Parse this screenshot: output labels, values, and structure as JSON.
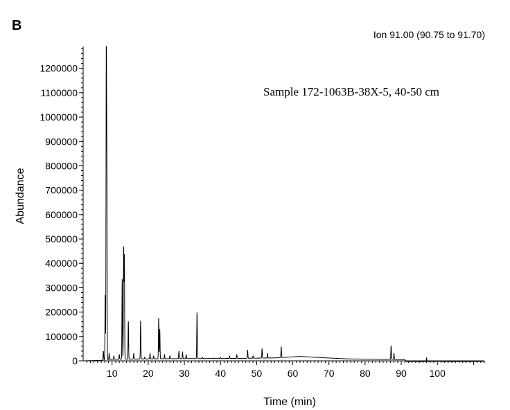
{
  "panel_label": "B",
  "ion_label": "Ion 91.00 (90.75  to 91.70)",
  "chart_data": {
    "type": "line",
    "title": "",
    "annotation": "Sample 172-1063B-38X-5, 40-50 cm",
    "xlabel": "Time (min)",
    "ylabel": "Abundance",
    "xlim": [
      2,
      113
    ],
    "ylim": [
      0,
      1290000
    ],
    "x_ticks": [
      10,
      20,
      30,
      40,
      50,
      60,
      70,
      80,
      90,
      100
    ],
    "y_ticks": [
      0,
      100000,
      200000,
      300000,
      400000,
      500000,
      600000,
      700000,
      800000,
      900000,
      1000000,
      1100000,
      1200000
    ],
    "grid": false,
    "series": [
      {
        "color": "#000000",
        "peaks": [
          {
            "x": 7.6,
            "y": 40000
          },
          {
            "x": 8.1,
            "y": 270000
          },
          {
            "x": 8.4,
            "y": 1290000
          },
          {
            "x": 8.55,
            "y": 770000
          },
          {
            "x": 9.2,
            "y": 30000
          },
          {
            "x": 10.5,
            "y": 20000
          },
          {
            "x": 12.0,
            "y": 25000
          },
          {
            "x": 12.8,
            "y": 335000
          },
          {
            "x": 13.2,
            "y": 462000
          },
          {
            "x": 13.4,
            "y": 430000
          },
          {
            "x": 14.5,
            "y": 162000
          },
          {
            "x": 16.0,
            "y": 30000
          },
          {
            "x": 17.9,
            "y": 165000
          },
          {
            "x": 19.0,
            "y": 15000
          },
          {
            "x": 20.5,
            "y": 30000
          },
          {
            "x": 21.5,
            "y": 20000
          },
          {
            "x": 22.9,
            "y": 176000
          },
          {
            "x": 23.2,
            "y": 130000
          },
          {
            "x": 24.5,
            "y": 25000
          },
          {
            "x": 26.0,
            "y": 20000
          },
          {
            "x": 28.5,
            "y": 40000
          },
          {
            "x": 29.5,
            "y": 35000
          },
          {
            "x": 30.5,
            "y": 25000
          },
          {
            "x": 33.5,
            "y": 198000
          },
          {
            "x": 35.0,
            "y": 15000
          },
          {
            "x": 38.0,
            "y": 12000
          },
          {
            "x": 40.0,
            "y": 15000
          },
          {
            "x": 42.5,
            "y": 20000
          },
          {
            "x": 44.5,
            "y": 25000
          },
          {
            "x": 47.5,
            "y": 45000
          },
          {
            "x": 49.0,
            "y": 20000
          },
          {
            "x": 51.5,
            "y": 50000
          },
          {
            "x": 53.0,
            "y": 30000
          },
          {
            "x": 56.8,
            "y": 58000
          },
          {
            "x": 87.2,
            "y": 62000
          },
          {
            "x": 88.0,
            "y": 30000
          },
          {
            "x": 97.0,
            "y": 12000
          }
        ],
        "baseline": [
          {
            "x": 2.0,
            "y": 0
          },
          {
            "x": 7.0,
            "y": 2000
          },
          {
            "x": 10.0,
            "y": 6000
          },
          {
            "x": 20.0,
            "y": 8000
          },
          {
            "x": 30.0,
            "y": 9000
          },
          {
            "x": 45.0,
            "y": 10000
          },
          {
            "x": 55.0,
            "y": 12000
          },
          {
            "x": 62.0,
            "y": 18000
          },
          {
            "x": 68.0,
            "y": 13000
          },
          {
            "x": 75.0,
            "y": 8000
          },
          {
            "x": 85.0,
            "y": 6000
          },
          {
            "x": 91.0,
            "y": 5000
          },
          {
            "x": 91.5,
            "y": -4000
          },
          {
            "x": 100.0,
            "y": -2000
          },
          {
            "x": 107.0,
            "y": -4000
          },
          {
            "x": 113.0,
            "y": -2000
          }
        ]
      }
    ]
  }
}
